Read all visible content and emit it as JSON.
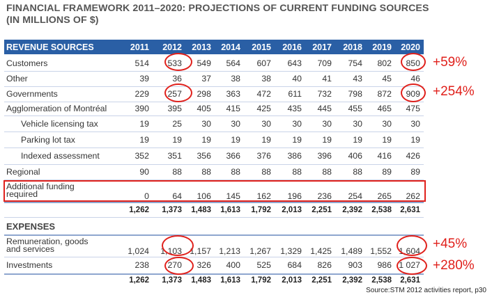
{
  "title_line1": "FINANCIAL FRAMEWORK 2011–2020: PROJECTIONS OF CURRENT FUNDING SOURCES",
  "title_line2": "(IN MILLIONS OF $)",
  "header": {
    "label": "REVENUE SOURCES",
    "years": [
      "2011",
      "2012",
      "2013",
      "2014",
      "2015",
      "2016",
      "2017",
      "2018",
      "2019",
      "2020"
    ]
  },
  "revenue_rows": [
    {
      "label": "Customers",
      "values": [
        "514",
        "533",
        "549",
        "564",
        "607",
        "643",
        "709",
        "754",
        "802",
        "850"
      ]
    },
    {
      "label": "Other",
      "values": [
        "39",
        "36",
        "37",
        "38",
        "38",
        "40",
        "41",
        "43",
        "45",
        "46"
      ]
    },
    {
      "label": "Governments",
      "values": [
        "229",
        "257",
        "298",
        "363",
        "472",
        "611",
        "732",
        "798",
        "872",
        "909"
      ]
    },
    {
      "label": "Agglomeration of Montréal",
      "values": [
        "390",
        "395",
        "405",
        "415",
        "425",
        "435",
        "445",
        "455",
        "465",
        "475"
      ]
    },
    {
      "label": "Vehicle licensing tax",
      "values": [
        "19",
        "25",
        "30",
        "30",
        "30",
        "30",
        "30",
        "30",
        "30",
        "30"
      ]
    },
    {
      "label": "Parking lot tax",
      "values": [
        "19",
        "19",
        "19",
        "19",
        "19",
        "19",
        "19",
        "19",
        "19",
        "19"
      ]
    },
    {
      "label": "Indexed assessment",
      "values": [
        "352",
        "351",
        "356",
        "366",
        "376",
        "386",
        "396",
        "406",
        "416",
        "426"
      ]
    },
    {
      "label": "Regional",
      "values": [
        "90",
        "88",
        "88",
        "88",
        "88",
        "88",
        "88",
        "88",
        "89",
        "89"
      ]
    }
  ],
  "additional": {
    "label_line1": "Additional funding",
    "label_line2": "required",
    "values": [
      "0",
      "64",
      "106",
      "145",
      "162",
      "196",
      "236",
      "254",
      "265",
      "262"
    ]
  },
  "revenue_total": [
    "1,262",
    "1,373",
    "1,483",
    "1,613",
    "1,792",
    "2,013",
    "2,251",
    "2,392",
    "2,538",
    "2,631"
  ],
  "expenses": {
    "label": "EXPENSES",
    "remuneration": {
      "label_line1": "Remuneration, goods",
      "label_line2": "and services",
      "values": [
        "1,024",
        "1,103",
        "1,157",
        "1,213",
        "1,267",
        "1,329",
        "1,425",
        "1,489",
        "1,552",
        "1,604"
      ]
    },
    "investments": {
      "label": "Investments",
      "values": [
        "238",
        "270",
        "326",
        "400",
        "525",
        "684",
        "826",
        "903",
        "986",
        "1 027"
      ]
    },
    "total": [
      "1,262",
      "1,373",
      "1,483",
      "1,613",
      "1,792",
      "2,013",
      "2,251",
      "2,392",
      "2,538",
      "2,631"
    ]
  },
  "annotations": {
    "customers": "+59%",
    "governments": "+254%",
    "remuneration": "+45%",
    "investments": "+280%",
    "color": "#e0201b"
  },
  "source": "Source:STM 2012 activities report, p30"
}
